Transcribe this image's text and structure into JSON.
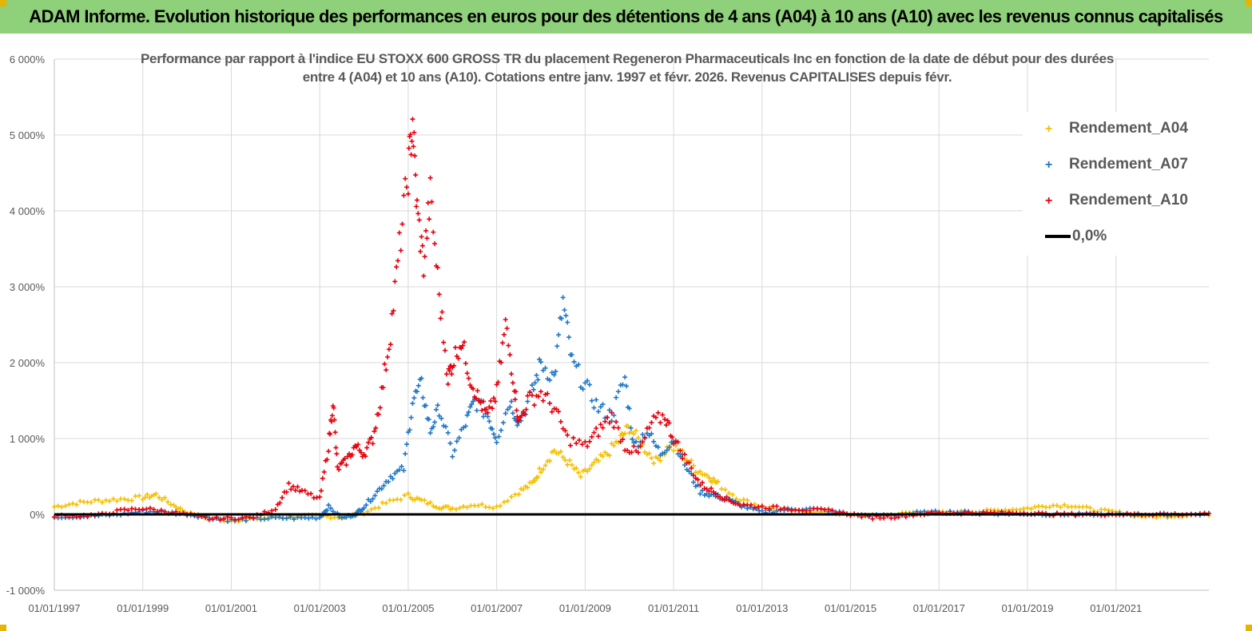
{
  "header": {
    "title": "ADAM Informe. Evolution historique des performances en euros pour des détentions de 4 ans (A04) à 10 ans (A10) avec les revenus connus capitalisés"
  },
  "chart_data": {
    "type": "scatter",
    "title_lines": [
      "Performance par rapport à l'indice EU STOXX 600 GROSS TR  du placement Regeneron Pharmaceuticals Inc en fonction de la date de début pour des durées",
      "entre 4 (A04) et 10 ans (A10). Cotations entre janv. 1997 et févr. 2026. Revenus CAPITALISES depuis févr."
    ],
    "xlabel": "",
    "ylabel": "",
    "x_range": [
      1997.0,
      2023.1
    ],
    "ylim": [
      -1000,
      6000
    ],
    "y_ticks": [
      -1000,
      0,
      1000,
      2000,
      3000,
      4000,
      5000,
      6000
    ],
    "y_tick_labels": [
      "-1 000%",
      "0%",
      "1 000%",
      "2 000%",
      "3 000%",
      "4 000%",
      "5 000%",
      "6 000%"
    ],
    "x_ticks": [
      1997,
      1999,
      2001,
      2003,
      2005,
      2007,
      2009,
      2011,
      2013,
      2015,
      2017,
      2019,
      2021
    ],
    "x_tick_labels": [
      "01/01/1997",
      "01/01/1999",
      "01/01/2001",
      "01/01/2003",
      "01/01/2005",
      "01/01/2007",
      "01/01/2009",
      "01/01/2011",
      "01/01/2013",
      "01/01/2015",
      "01/01/2017",
      "01/01/2019",
      "01/01/2021"
    ],
    "legend_position": "top-right",
    "series": [
      {
        "name": "Rendement_A04",
        "color": "#f5c000",
        "marker": "+",
        "x": [
          1997.0,
          1997.5,
          1998.0,
          1998.5,
          1999.0,
          1999.3,
          1999.7,
          2000.0,
          2000.5,
          2001.0,
          2001.5,
          2002.0,
          2002.5,
          2003.0,
          2003.5,
          2004.0,
          2004.5,
          2005.0,
          2005.3,
          2005.7,
          2006.0,
          2006.5,
          2007.0,
          2007.5,
          2007.8,
          2008.0,
          2008.3,
          2008.6,
          2008.9,
          2009.2,
          2009.5,
          2009.8,
          2010.0,
          2010.3,
          2010.6,
          2010.9,
          2011.2,
          2011.5,
          2011.8,
          2012.0,
          2012.5,
          2013.0,
          2013.5,
          2014.0,
          2014.5,
          2015.0,
          2015.5,
          2016.0,
          2016.5,
          2017.0,
          2017.5,
          2018.0,
          2018.5,
          2019.0,
          2019.5,
          2020.0,
          2020.5,
          2021.0,
          2021.5,
          2022.0,
          2022.5,
          2023.1
        ],
        "y": [
          100,
          150,
          180,
          200,
          220,
          260,
          120,
          20,
          -50,
          -80,
          -60,
          -40,
          -30,
          -20,
          -40,
          20,
          150,
          250,
          180,
          100,
          80,
          130,
          100,
          300,
          400,
          600,
          850,
          700,
          500,
          650,
          800,
          1000,
          1150,
          900,
          700,
          900,
          800,
          600,
          500,
          400,
          200,
          100,
          50,
          40,
          20,
          0,
          -20,
          0,
          30,
          20,
          30,
          40,
          60,
          80,
          120,
          120,
          60,
          30,
          -20,
          -30,
          -10,
          0
        ]
      },
      {
        "name": "Rendement_A07",
        "color": "#1f77c8",
        "marker": "+",
        "x": [
          1997.0,
          1997.5,
          1998.0,
          1998.5,
          1999.0,
          1999.5,
          2000.0,
          2000.5,
          2001.0,
          2001.5,
          2002.0,
          2002.5,
          2003.0,
          2003.2,
          2003.5,
          2003.8,
          2004.0,
          2004.3,
          2004.6,
          2004.9,
          2005.1,
          2005.3,
          2005.5,
          2005.7,
          2006.0,
          2006.3,
          2006.5,
          2006.8,
          2007.0,
          2007.3,
          2007.5,
          2007.8,
          2008.0,
          2008.3,
          2008.5,
          2008.7,
          2009.0,
          2009.3,
          2009.6,
          2009.9,
          2010.1,
          2010.4,
          2010.7,
          2011.0,
          2011.3,
          2011.6,
          2011.9,
          2012.2,
          2012.6,
          2013.0,
          2013.5,
          2014.0,
          2014.5,
          2015.0,
          2015.5,
          2016.0,
          2016.5,
          2017.0,
          2017.5,
          2018.0,
          2018.5,
          2019.0,
          2019.5,
          2020.0,
          2020.5,
          2021.0,
          2021.5,
          2022.0,
          2022.5,
          2023.1
        ],
        "y": [
          -30,
          -30,
          -20,
          0,
          40,
          30,
          0,
          -40,
          -80,
          -60,
          -50,
          -50,
          -40,
          100,
          -50,
          0,
          100,
          300,
          500,
          600,
          1500,
          1700,
          1100,
          1400,
          800,
          1200,
          1500,
          1300,
          1000,
          1500,
          1200,
          1600,
          2000,
          1800,
          2800,
          2000,
          1700,
          1400,
          1300,
          1800,
          900,
          1100,
          800,
          1000,
          600,
          300,
          250,
          200,
          100,
          30,
          60,
          80,
          50,
          0,
          -20,
          -10,
          20,
          30,
          30,
          20,
          10,
          10,
          0,
          0,
          0,
          0,
          0,
          0,
          0,
          0
        ]
      },
      {
        "name": "Rendement_A10",
        "color": "#e8000c",
        "marker": "+",
        "x": [
          1997.0,
          1997.5,
          1998.0,
          1998.5,
          1999.0,
          1999.5,
          2000.0,
          2000.5,
          2001.0,
          2001.5,
          2002.0,
          2002.3,
          2002.6,
          2003.0,
          2003.2,
          2003.3,
          2003.4,
          2003.6,
          2003.8,
          2004.0,
          2004.2,
          2004.4,
          2004.6,
          2004.8,
          2005.0,
          2005.1,
          2005.2,
          2005.35,
          2005.5,
          2005.7,
          2005.9,
          2006.0,
          2006.2,
          2006.4,
          2006.6,
          2006.8,
          2007.0,
          2007.2,
          2007.4,
          2007.5,
          2007.7,
          2008.0,
          2008.3,
          2008.6,
          2009.0,
          2009.3,
          2009.6,
          2009.9,
          2010.2,
          2010.5,
          2010.8,
          2011.0,
          2011.3,
          2011.6,
          2011.9,
          2012.2,
          2012.5,
          2013.0,
          2013.5,
          2014.0,
          2014.5,
          2015.0,
          2015.5,
          2016.0,
          2016.5,
          2017.0,
          2017.5,
          2018.0,
          2018.5,
          2019.0,
          2019.5,
          2020.0,
          2020.5,
          2021.0,
          2021.5,
          2022.0,
          2022.5,
          2023.1
        ],
        "y": [
          -20,
          -20,
          -10,
          50,
          80,
          40,
          0,
          -60,
          -50,
          -40,
          80,
          380,
          300,
          200,
          900,
          1500,
          600,
          700,
          900,
          800,
          1000,
          1600,
          2400,
          3500,
          4500,
          5200,
          4000,
          3300,
          4200,
          2900,
          1800,
          2000,
          2300,
          1800,
          1500,
          1300,
          1600,
          2500,
          1700,
          1200,
          1500,
          1600,
          1400,
          1000,
          900,
          1100,
          1300,
          900,
          800,
          1200,
          1300,
          1000,
          700,
          400,
          300,
          200,
          130,
          100,
          80,
          60,
          50,
          0,
          -40,
          -30,
          0,
          20,
          20,
          20,
          20,
          20,
          0,
          0,
          0,
          0,
          0,
          0,
          0,
          0
        ]
      }
    ],
    "reference_line": {
      "name": "0,0%",
      "value": 0,
      "color": "#000000"
    }
  }
}
